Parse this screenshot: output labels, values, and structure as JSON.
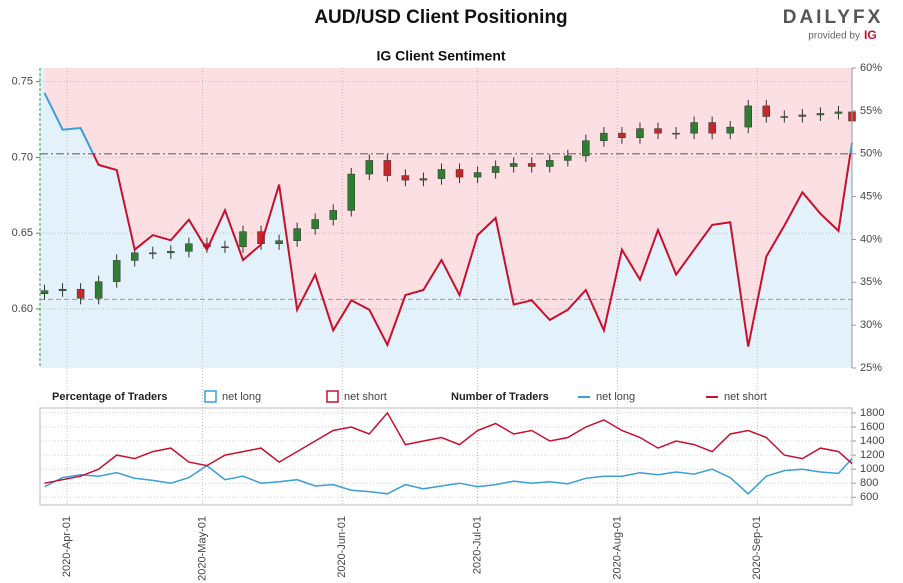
{
  "header": {
    "title": "AUD/USD Client Positioning",
    "brand": "DAILYFX",
    "provided_by": "provided by",
    "brand_ig": "IG"
  },
  "chart_data": [
    {
      "type": "candlestick",
      "title": "IG Client Sentiment",
      "x": [
        "2020-03-27",
        "2020-03-31",
        "2020-04-04",
        "2020-04-08",
        "2020-04-12",
        "2020-04-16",
        "2020-04-20",
        "2020-04-24",
        "2020-04-28",
        "2020-05-02",
        "2020-05-06",
        "2020-05-10",
        "2020-05-14",
        "2020-05-18",
        "2020-05-22",
        "2020-05-26",
        "2020-05-30",
        "2020-06-03",
        "2020-06-07",
        "2020-06-11",
        "2020-06-15",
        "2020-06-19",
        "2020-06-23",
        "2020-06-27",
        "2020-07-01",
        "2020-07-05",
        "2020-07-09",
        "2020-07-13",
        "2020-07-17",
        "2020-07-21",
        "2020-07-25",
        "2020-07-29",
        "2020-08-02",
        "2020-08-06",
        "2020-08-10",
        "2020-08-14",
        "2020-08-18",
        "2020-08-22",
        "2020-08-26",
        "2020-08-30",
        "2020-09-03",
        "2020-09-07",
        "2020-09-11",
        "2020-09-15",
        "2020-09-19",
        "2020-09-22"
      ],
      "open": [
        0.61,
        0.612,
        0.613,
        0.607,
        0.618,
        0.632,
        0.637,
        0.637,
        0.638,
        0.643,
        0.641,
        0.641,
        0.651,
        0.643,
        0.645,
        0.653,
        0.659,
        0.665,
        0.689,
        0.698,
        0.688,
        0.685,
        0.686,
        0.692,
        0.687,
        0.69,
        0.694,
        0.696,
        0.694,
        0.698,
        0.701,
        0.711,
        0.716,
        0.713,
        0.719,
        0.716,
        0.716,
        0.723,
        0.716,
        0.72,
        0.734,
        0.727,
        0.727,
        0.728,
        0.729,
        0.73
      ],
      "high": [
        0.616,
        0.617,
        0.617,
        0.622,
        0.636,
        0.641,
        0.641,
        0.642,
        0.647,
        0.647,
        0.645,
        0.655,
        0.655,
        0.649,
        0.657,
        0.663,
        0.669,
        0.693,
        0.702,
        0.702,
        0.692,
        0.69,
        0.696,
        0.696,
        0.694,
        0.698,
        0.7,
        0.7,
        0.702,
        0.705,
        0.715,
        0.72,
        0.72,
        0.723,
        0.723,
        0.72,
        0.727,
        0.727,
        0.724,
        0.738,
        0.738,
        0.731,
        0.732,
        0.733,
        0.734,
        0.734
      ],
      "low": [
        0.606,
        0.608,
        0.603,
        0.603,
        0.614,
        0.628,
        0.633,
        0.633,
        0.634,
        0.637,
        0.637,
        0.637,
        0.639,
        0.639,
        0.641,
        0.649,
        0.655,
        0.661,
        0.685,
        0.684,
        0.681,
        0.681,
        0.682,
        0.683,
        0.683,
        0.686,
        0.69,
        0.69,
        0.69,
        0.694,
        0.697,
        0.707,
        0.709,
        0.709,
        0.712,
        0.712,
        0.712,
        0.712,
        0.712,
        0.716,
        0.723,
        0.723,
        0.723,
        0.724,
        0.725,
        0.72
      ],
      "close": [
        0.612,
        0.613,
        0.607,
        0.618,
        0.632,
        0.637,
        0.637,
        0.638,
        0.643,
        0.641,
        0.641,
        0.651,
        0.643,
        0.645,
        0.653,
        0.659,
        0.665,
        0.689,
        0.698,
        0.688,
        0.685,
        0.686,
        0.692,
        0.687,
        0.69,
        0.694,
        0.696,
        0.694,
        0.698,
        0.701,
        0.711,
        0.716,
        0.713,
        0.719,
        0.716,
        0.716,
        0.723,
        0.716,
        0.72,
        0.734,
        0.727,
        0.727,
        0.728,
        0.729,
        0.73,
        0.724
      ],
      "sentiment": {
        "axis": "y2",
        "values": [
          57.1,
          52.8,
          53,
          48.7,
          48.1,
          38.8,
          40.5,
          39.9,
          42.3,
          38.8,
          43.4,
          37.6,
          39.4,
          46.4,
          31.8,
          35.9,
          29.4,
          32.9,
          31.8,
          27.7,
          33.5,
          34.1,
          37.6,
          33.5,
          40.5,
          42.5,
          32.4,
          32.9,
          30.6,
          31.8,
          34.1,
          29.4,
          38.8,
          35.3,
          41.1,
          35.9,
          38.8,
          41.7,
          42,
          27.5,
          38,
          41.6,
          45.5,
          43,
          41,
          51.3
        ]
      },
      "xlim": [
        "2020-03-26",
        "2020-09-22"
      ],
      "xticks": [
        {
          "value": "2020-04-01",
          "label": "2020-Apr-01"
        },
        {
          "value": "2020-05-01",
          "label": "2020-May-01"
        },
        {
          "value": "2020-06-01",
          "label": "2020-Jun-01"
        },
        {
          "value": "2020-07-01",
          "label": "2020-Jul-01"
        },
        {
          "value": "2020-08-01",
          "label": "2020-Aug-01"
        },
        {
          "value": "2020-09-01",
          "label": "2020-Sep-01"
        }
      ],
      "ylim": [
        0.561,
        0.759
      ],
      "yticks": [
        {
          "value": 0.6,
          "label": "0.60"
        },
        {
          "value": 0.65,
          "label": "0.65"
        },
        {
          "value": 0.7,
          "label": "0.70"
        },
        {
          "value": 0.75,
          "label": "0.75"
        }
      ],
      "y2lim": [
        25,
        60
      ],
      "y2ticks": [
        {
          "value": 25,
          "label": "25%"
        },
        {
          "value": 30,
          "label": "30%"
        },
        {
          "value": 35,
          "label": "35%"
        },
        {
          "value": 40,
          "label": "40%"
        },
        {
          "value": 45,
          "label": "45%"
        },
        {
          "value": 50,
          "label": "50%"
        },
        {
          "value": 55,
          "label": "55%"
        },
        {
          "value": 60,
          "label": "60%"
        }
      ],
      "hlines": [
        {
          "value": 50,
          "axis": "y2"
        },
        {
          "value": 33,
          "axis": "y2"
        }
      ],
      "grid": true,
      "up_color": "#2e7d32",
      "down_color": "#c62828",
      "fill_legend": {
        "title": "Percentage of Traders",
        "entries": [
          {
            "name": "net long",
            "color": "#3a9fd6",
            "fill": "#e3f1fb"
          },
          {
            "name": "net short",
            "color": "#c8102e",
            "fill": "#fbdfe2"
          }
        ]
      }
    },
    {
      "type": "line",
      "legend_title": "Number of Traders",
      "x": [
        "2020-03-27",
        "2020-03-31",
        "2020-04-04",
        "2020-04-08",
        "2020-04-12",
        "2020-04-16",
        "2020-04-20",
        "2020-04-24",
        "2020-04-28",
        "2020-05-02",
        "2020-05-06",
        "2020-05-10",
        "2020-05-14",
        "2020-05-18",
        "2020-05-22",
        "2020-05-26",
        "2020-05-30",
        "2020-06-03",
        "2020-06-07",
        "2020-06-11",
        "2020-06-15",
        "2020-06-19",
        "2020-06-23",
        "2020-06-27",
        "2020-07-01",
        "2020-07-05",
        "2020-07-09",
        "2020-07-13",
        "2020-07-17",
        "2020-07-21",
        "2020-07-25",
        "2020-07-29",
        "2020-08-02",
        "2020-08-06",
        "2020-08-10",
        "2020-08-14",
        "2020-08-18",
        "2020-08-22",
        "2020-08-26",
        "2020-08-30",
        "2020-09-03",
        "2020-09-07",
        "2020-09-11",
        "2020-09-15",
        "2020-09-19",
        "2020-09-22"
      ],
      "series": [
        {
          "name": "net long",
          "color": "#3a9fd6",
          "values": [
            750,
            880,
            920,
            900,
            950,
            870,
            840,
            800,
            880,
            1050,
            850,
            900,
            800,
            820,
            850,
            760,
            780,
            700,
            680,
            650,
            780,
            720,
            760,
            800,
            750,
            780,
            830,
            800,
            820,
            790,
            870,
            900,
            900,
            950,
            920,
            960,
            930,
            1000,
            880,
            650,
            900,
            980,
            1000,
            960,
            940,
            1150
          ]
        },
        {
          "name": "net short",
          "color": "#c8102e",
          "values": [
            800,
            850,
            900,
            1000,
            1200,
            1150,
            1250,
            1300,
            1100,
            1050,
            1200,
            1250,
            1300,
            1100,
            1250,
            1400,
            1550,
            1600,
            1500,
            1800,
            1350,
            1400,
            1450,
            1350,
            1550,
            1650,
            1500,
            1550,
            1400,
            1450,
            1600,
            1700,
            1550,
            1450,
            1300,
            1400,
            1350,
            1250,
            1500,
            1550,
            1450,
            1200,
            1150,
            1300,
            1250,
            1080
          ]
        }
      ],
      "ylim": [
        490,
        1870
      ],
      "yticks": [
        600,
        800,
        1000,
        1200,
        1400,
        1600,
        1800
      ],
      "grid": true
    }
  ]
}
